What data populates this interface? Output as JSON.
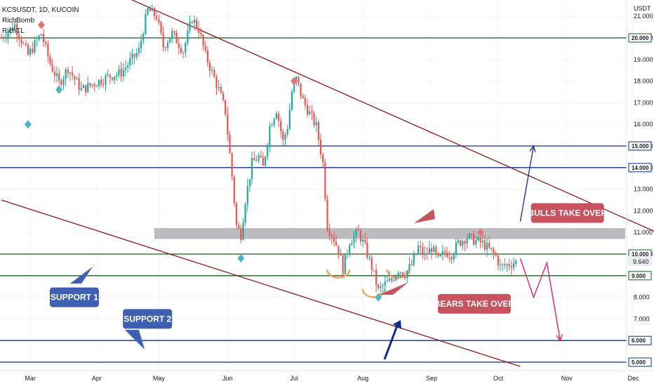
{
  "header": {
    "symbol": "KCSUSDT, 1D, KUCOIN",
    "indicator_1": "RichBomb",
    "indicator_2": "RichTL"
  },
  "currency": "USDT",
  "current_price_label": "9.640",
  "chart_data": {
    "type": "candlestick",
    "title": "",
    "xlabel": "",
    "ylabel": "",
    "ylim": [
      4.8,
      21.2
    ],
    "x_ticks": [
      "Mar",
      "Apr",
      "May",
      "Jun",
      "Jul",
      "Aug",
      "Sep",
      "Oct",
      "Nov",
      "Dec"
    ],
    "y_ticks": [
      5,
      6,
      7,
      8,
      9,
      10,
      11,
      12,
      13,
      14,
      15,
      16,
      17,
      18,
      19,
      20,
      21
    ],
    "y_tick_labels": [
      "5.000",
      "6.000",
      "7.000",
      "8.000",
      "9.000",
      "10.000",
      "11.000",
      "12.000",
      "13.000",
      "14.000",
      "15.000",
      "16.000",
      "17.000",
      "18.000",
      "19.000",
      "20.000",
      "21.000"
    ],
    "price_path": [
      [
        0,
        20.0
      ],
      [
        6,
        20.6
      ],
      [
        12,
        19.2
      ],
      [
        18,
        20.2
      ],
      [
        22,
        18.8
      ],
      [
        26,
        17.9
      ],
      [
        30,
        18.6
      ],
      [
        36,
        17.6
      ],
      [
        42,
        17.9
      ],
      [
        48,
        18.2
      ],
      [
        54,
        18.4
      ],
      [
        58,
        18.9
      ],
      [
        62,
        19.4
      ],
      [
        64,
        20.4
      ],
      [
        66,
        21.3
      ],
      [
        70,
        21.0
      ],
      [
        73,
        19.6
      ],
      [
        77,
        20.2
      ],
      [
        82,
        19.4
      ],
      [
        86,
        20.9
      ],
      [
        89,
        20.4
      ],
      [
        92,
        19.2
      ],
      [
        95,
        18.4
      ],
      [
        98,
        17.6
      ],
      [
        101,
        16.6
      ],
      [
        104,
        13.6
      ],
      [
        106,
        11.3
      ],
      [
        108,
        10.9
      ],
      [
        110,
        12.5
      ],
      [
        113,
        14.2
      ],
      [
        116,
        14.5
      ],
      [
        118,
        14.0
      ],
      [
        121,
        15.9
      ],
      [
        124,
        16.7
      ],
      [
        127,
        15.2
      ],
      [
        129,
        15.9
      ],
      [
        131,
        17.5
      ],
      [
        133,
        18.1
      ],
      [
        136,
        17.1
      ],
      [
        139,
        16.5
      ],
      [
        142,
        15.9
      ],
      [
        145,
        14.2
      ],
      [
        147,
        11.3
      ],
      [
        150,
        10.7
      ],
      [
        152,
        10.2
      ],
      [
        154,
        9.3
      ],
      [
        157,
        10.6
      ],
      [
        161,
        11.0
      ],
      [
        164,
        10.3
      ],
      [
        167,
        9.4
      ],
      [
        170,
        8.3
      ],
      [
        173,
        8.6
      ],
      [
        176,
        8.8
      ],
      [
        179,
        9.3
      ],
      [
        182,
        9.1
      ],
      [
        185,
        9.5
      ],
      [
        188,
        10.3
      ],
      [
        191,
        9.9
      ],
      [
        194,
        10.3
      ],
      [
        197,
        9.7
      ],
      [
        200,
        10.1
      ],
      [
        203,
        10.0
      ],
      [
        206,
        10.5
      ],
      [
        210,
        10.8
      ],
      [
        214,
        10.6
      ],
      [
        217,
        10.5
      ],
      [
        220,
        10.2
      ],
      [
        223,
        9.9
      ],
      [
        225,
        9.4
      ],
      [
        228,
        9.5
      ],
      [
        232,
        9.64
      ]
    ],
    "horizontal_levels": [
      {
        "price": 20.0,
        "label": "20.000",
        "color": "#1b5e20"
      },
      {
        "price": 15.0,
        "label": "15.000",
        "color": "#0d2c8c"
      },
      {
        "price": 14.0,
        "label": "14.000",
        "color": "#0d2c8c"
      },
      {
        "price": 10.0,
        "label": "10.000",
        "color": "#1b5e20"
      },
      {
        "price": 9.0,
        "label": "9.000",
        "color": "#1b5e20"
      },
      {
        "price": 6.0,
        "label": "6.000",
        "color": "#0d2c8c"
      },
      {
        "price": 5.0,
        "label": "5.000",
        "color": "#0d2c8c"
      }
    ],
    "resistance_zone": {
      "low": 10.7,
      "high": 11.2,
      "color": "#b0b0b5"
    },
    "trendlines": [
      {
        "from": [
          58,
          21.8
        ],
        "to": [
          300,
          10.8
        ],
        "color": "#8b1a1a"
      },
      {
        "from": [
          0,
          12.5
        ],
        "to": [
          234,
          4.8
        ],
        "color": "#8b1a1a"
      }
    ],
    "projections": [
      {
        "color": "#1a3a9a",
        "points": [
          [
            234,
            11.5
          ],
          [
            240,
            15.0
          ]
        ],
        "style": "thin-arrow"
      },
      {
        "color": "#e91e63",
        "points": [
          [
            234,
            9.8
          ],
          [
            240,
            8.0
          ],
          [
            246,
            9.6
          ],
          [
            252,
            6.0
          ]
        ],
        "style": "thin-arrow"
      }
    ],
    "annotations": [
      {
        "text": "SUPPORT 1",
        "color": "#3f5fb3",
        "price": 8.0,
        "x": 37
      },
      {
        "text": "SUPPORT 2",
        "color": "#3f5fb3",
        "price": 7.0,
        "x": 70
      },
      {
        "text": "BULLS TAKE OVER",
        "color": "#c9525f",
        "price": 11.9,
        "x": 254
      },
      {
        "text": "BEARS TAKE OVER",
        "color": "#c9525f",
        "price": 7.7,
        "x": 212
      }
    ],
    "markers": {
      "diamonds_teal": [
        [
          12,
          16.0
        ],
        [
          26,
          17.6
        ],
        [
          108,
          9.8
        ],
        [
          170,
          8.0
        ]
      ],
      "diamonds_red": [
        [
          18,
          20.6
        ],
        [
          132,
          18.0
        ],
        [
          216,
          11.0
        ]
      ]
    },
    "colors": {
      "up": "#26a69a",
      "down": "#ef5350",
      "grid": "#f0f3fa"
    }
  }
}
